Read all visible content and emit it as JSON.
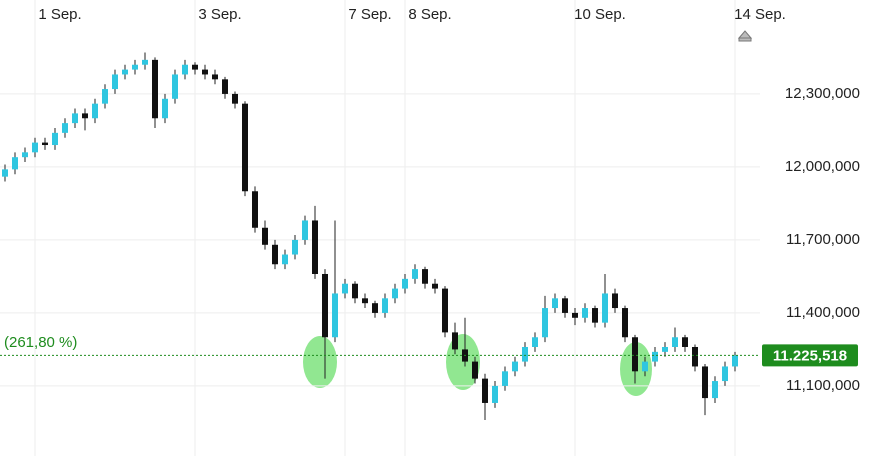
{
  "chart_data": {
    "type": "candlestick",
    "up_color": "#2fc6e0",
    "down_color": "#111111",
    "ohlc": [
      [
        11960000,
        12010000,
        11940000,
        11990000
      ],
      [
        11990000,
        12060000,
        11970000,
        12040000
      ],
      [
        12040000,
        12080000,
        12020000,
        12060000
      ],
      [
        12060000,
        12120000,
        12040000,
        12100000
      ],
      [
        12100000,
        12120000,
        12070000,
        12090000
      ],
      [
        12090000,
        12160000,
        12070000,
        12140000
      ],
      [
        12140000,
        12200000,
        12120000,
        12180000
      ],
      [
        12180000,
        12240000,
        12160000,
        12220000
      ],
      [
        12220000,
        12240000,
        12150000,
        12200000
      ],
      [
        12200000,
        12280000,
        12180000,
        12260000
      ],
      [
        12260000,
        12340000,
        12240000,
        12320000
      ],
      [
        12320000,
        12400000,
        12300000,
        12380000
      ],
      [
        12380000,
        12420000,
        12360000,
        12400000
      ],
      [
        12400000,
        12440000,
        12380000,
        12420000
      ],
      [
        12420000,
        12470000,
        12400000,
        12440000
      ],
      [
        12440000,
        12450000,
        12160000,
        12200000
      ],
      [
        12200000,
        12300000,
        12180000,
        12280000
      ],
      [
        12280000,
        12400000,
        12260000,
        12380000
      ],
      [
        12380000,
        12440000,
        12360000,
        12420000
      ],
      [
        12420000,
        12430000,
        12380000,
        12400000
      ],
      [
        12400000,
        12420000,
        12360000,
        12380000
      ],
      [
        12380000,
        12400000,
        12340000,
        12360000
      ],
      [
        12360000,
        12370000,
        12280000,
        12300000
      ],
      [
        12300000,
        12310000,
        12240000,
        12260000
      ],
      [
        12260000,
        12270000,
        11880000,
        11900000
      ],
      [
        11900000,
        11920000,
        11730000,
        11750000
      ],
      [
        11750000,
        11780000,
        11660000,
        11680000
      ],
      [
        11680000,
        11700000,
        11580000,
        11600000
      ],
      [
        11600000,
        11660000,
        11580000,
        11640000
      ],
      [
        11640000,
        11720000,
        11620000,
        11700000
      ],
      [
        11700000,
        11800000,
        11680000,
        11780000
      ],
      [
        11780000,
        11840000,
        11540000,
        11560000
      ],
      [
        11560000,
        11580000,
        11130000,
        11300000
      ],
      [
        11300000,
        11780000,
        11280000,
        11480000
      ],
      [
        11480000,
        11540000,
        11460000,
        11520000
      ],
      [
        11520000,
        11530000,
        11440000,
        11460000
      ],
      [
        11460000,
        11480000,
        11420000,
        11440000
      ],
      [
        11440000,
        11450000,
        11380000,
        11400000
      ],
      [
        11400000,
        11480000,
        11380000,
        11460000
      ],
      [
        11460000,
        11520000,
        11440000,
        11500000
      ],
      [
        11500000,
        11560000,
        11480000,
        11540000
      ],
      [
        11540000,
        11600000,
        11520000,
        11580000
      ],
      [
        11580000,
        11590000,
        11500000,
        11520000
      ],
      [
        11520000,
        11540000,
        11480000,
        11500000
      ],
      [
        11500000,
        11510000,
        11300000,
        11320000
      ],
      [
        11320000,
        11360000,
        11230000,
        11250000
      ],
      [
        11250000,
        11380000,
        11180000,
        11200000
      ],
      [
        11200000,
        11220000,
        11110000,
        11130000
      ],
      [
        11130000,
        11150000,
        10960000,
        11030000
      ],
      [
        11030000,
        11120000,
        11010000,
        11100000
      ],
      [
        11100000,
        11180000,
        11080000,
        11160000
      ],
      [
        11160000,
        11220000,
        11140000,
        11200000
      ],
      [
        11200000,
        11280000,
        11180000,
        11260000
      ],
      [
        11260000,
        11320000,
        11240000,
        11300000
      ],
      [
        11300000,
        11470000,
        11280000,
        11420000
      ],
      [
        11420000,
        11480000,
        11400000,
        11460000
      ],
      [
        11460000,
        11470000,
        11380000,
        11400000
      ],
      [
        11400000,
        11420000,
        11350000,
        11380000
      ],
      [
        11380000,
        11440000,
        11360000,
        11420000
      ],
      [
        11420000,
        11430000,
        11340000,
        11360000
      ],
      [
        11360000,
        11560000,
        11340000,
        11480000
      ],
      [
        11480000,
        11500000,
        11400000,
        11420000
      ],
      [
        11420000,
        11430000,
        11280000,
        11300000
      ],
      [
        11300000,
        11310000,
        11110000,
        11160000
      ],
      [
        11160000,
        11220000,
        11140000,
        11200000
      ],
      [
        11200000,
        11260000,
        11180000,
        11240000
      ],
      [
        11240000,
        11280000,
        11220000,
        11260000
      ],
      [
        11260000,
        11340000,
        11240000,
        11300000
      ],
      [
        11300000,
        11310000,
        11240000,
        11260000
      ],
      [
        11260000,
        11270000,
        11160000,
        11180000
      ],
      [
        11180000,
        11190000,
        10980000,
        11050000
      ],
      [
        11050000,
        11140000,
        11030000,
        11120000
      ],
      [
        11120000,
        11200000,
        11100000,
        11180000
      ],
      [
        11180000,
        11240000,
        11160000,
        11225518
      ]
    ],
    "xticks": [
      {
        "value": 3,
        "label": "1 Sep."
      },
      {
        "value": 19,
        "label": "3 Sep."
      },
      {
        "value": 34,
        "label": "7 Sep."
      },
      {
        "value": 40,
        "label": "8 Sep."
      },
      {
        "value": 57,
        "label": "10 Sep."
      },
      {
        "value": 73,
        "label": "14 Sep."
      }
    ],
    "ylim": [
      10812000,
      12686000
    ],
    "yticks": [
      {
        "value": 12300000,
        "label": "12,300,000"
      },
      {
        "value": 12000000,
        "label": "12,000,000"
      },
      {
        "value": 11700000,
        "label": "11,700,000"
      },
      {
        "value": 11400000,
        "label": "11,400,000"
      },
      {
        "value": 11100000,
        "label": "11,100,000"
      }
    ],
    "grid": true,
    "price_line": {
      "value": 11225518,
      "label": "11.225,518",
      "color": "#1e8c1e"
    },
    "annotation": "(261,80 %)"
  }
}
